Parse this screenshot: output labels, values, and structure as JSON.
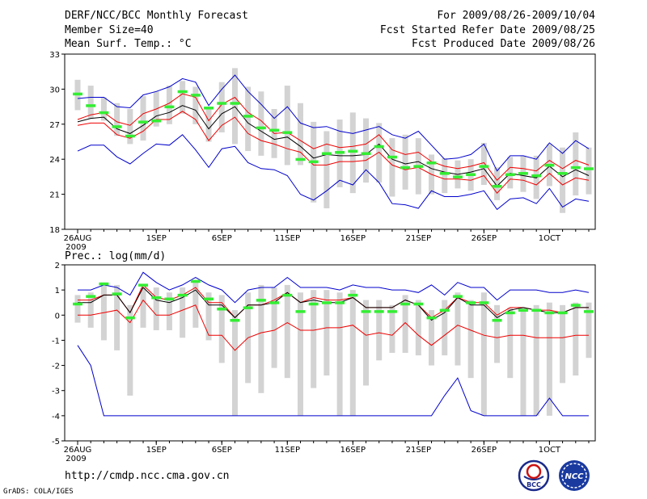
{
  "header": {
    "title": "DERF/NCC/BCC Monthly Forecast",
    "member_size": "Member Size=40",
    "variable": "Mean Surf. Temp.: °C",
    "period": "For 2009/08/26-2009/10/04",
    "fcst_started": "Fcst Started Refer Date 2009/08/25",
    "fcst_produced": "Fcst Produced Date 2009/08/26"
  },
  "precip_title": "Prec.: log(mm/d)",
  "footer": {
    "url": "http://cmdp.ncc.cma.gov.cn",
    "grads": "GrADS: COLA/IGES"
  },
  "logos": {
    "bcc": "BCC",
    "ncc": "NCC"
  },
  "colors": {
    "member_bar": "#d3d3d3",
    "observed": "#33ee33",
    "ensemble_mean": "#000000",
    "spread_band": "#ee0000",
    "extreme_band": "#0000cc"
  },
  "chart_data": [
    {
      "type": "line",
      "title": "Mean Surf. Temp.",
      "ylabel": "°C",
      "ylim": [
        18,
        33
      ],
      "yticks": [
        18,
        21,
        24,
        27,
        30,
        33
      ],
      "x": [
        "08/26",
        "08/27",
        "08/28",
        "08/29",
        "08/30",
        "08/31",
        "09/01",
        "09/02",
        "09/03",
        "09/04",
        "09/05",
        "09/06",
        "09/07",
        "09/08",
        "09/09",
        "09/10",
        "09/11",
        "09/12",
        "09/13",
        "09/14",
        "09/15",
        "09/16",
        "09/17",
        "09/18",
        "09/19",
        "09/20",
        "09/21",
        "09/22",
        "09/23",
        "09/24",
        "09/25",
        "09/26",
        "09/27",
        "09/28",
        "09/29",
        "09/30",
        "10/01",
        "10/02",
        "10/03",
        "10/04"
      ],
      "xtick_labels": [
        {
          "index": 0,
          "label": "26AUG",
          "sub": "2009"
        },
        {
          "index": 6,
          "label": "1SEP"
        },
        {
          "index": 11,
          "label": "6SEP"
        },
        {
          "index": 16,
          "label": "11SEP"
        },
        {
          "index": 21,
          "label": "16SEP"
        },
        {
          "index": 26,
          "label": "21SEP"
        },
        {
          "index": 31,
          "label": "26SEP"
        },
        {
          "index": 36,
          "label": "1OCT"
        }
      ],
      "series": [
        {
          "name": "ensemble max",
          "color": "#0000cc",
          "values": [
            29.2,
            29.3,
            29.3,
            28.5,
            28.4,
            29.5,
            29.8,
            30.2,
            30.9,
            30.6,
            28.6,
            30.0,
            31.2,
            29.8,
            28.7,
            27.5,
            28.5,
            27.1,
            26.7,
            26.8,
            26.4,
            26.2,
            26.5,
            26.8,
            26.1,
            25.8,
            26.4,
            25.2,
            24.0,
            24.1,
            24.4,
            25.3,
            23.0,
            24.3,
            24.3,
            24.0,
            25.4,
            24.5,
            25.6,
            24.9
          ]
        },
        {
          "name": "spread upper",
          "color": "#ee0000",
          "values": [
            27.4,
            27.8,
            28.0,
            27.2,
            26.9,
            27.9,
            28.3,
            28.8,
            29.6,
            29.3,
            27.3,
            28.7,
            29.3,
            28.0,
            27.3,
            26.2,
            26.3,
            25.6,
            24.9,
            25.3,
            25.0,
            25.1,
            25.3,
            26.1,
            24.8,
            24.4,
            24.6,
            23.8,
            23.4,
            23.2,
            23.4,
            23.7,
            22.2,
            23.3,
            23.2,
            23.0,
            23.9,
            23.2,
            23.9,
            23.5
          ]
        },
        {
          "name": "ensemble mean",
          "color": "#000000",
          "values": [
            27.2,
            27.5,
            27.6,
            26.6,
            26.2,
            26.9,
            27.7,
            28.0,
            28.6,
            28.2,
            26.6,
            27.9,
            28.5,
            27.1,
            26.4,
            25.7,
            25.9,
            25.1,
            24.1,
            24.4,
            24.3,
            24.3,
            24.4,
            25.3,
            24.0,
            23.6,
            23.8,
            23.2,
            22.9,
            22.7,
            22.9,
            23.2,
            21.7,
            22.8,
            22.6,
            22.4,
            23.4,
            22.5,
            23.1,
            22.6
          ]
        },
        {
          "name": "spread lower",
          "color": "#ee0000",
          "values": [
            26.9,
            27.1,
            27.1,
            26.1,
            25.8,
            26.4,
            27.4,
            27.4,
            28.1,
            27.4,
            25.6,
            26.9,
            27.6,
            26.2,
            25.6,
            25.3,
            24.9,
            24.6,
            23.5,
            23.5,
            23.8,
            23.8,
            23.9,
            24.6,
            23.5,
            23.1,
            23.3,
            22.7,
            22.3,
            22.3,
            22.2,
            22.6,
            21.1,
            22.3,
            22.2,
            21.8,
            22.8,
            21.8,
            22.4,
            22.2
          ]
        },
        {
          "name": "ensemble min",
          "color": "#0000cc",
          "values": [
            24.7,
            25.2,
            25.2,
            24.2,
            23.6,
            24.5,
            25.3,
            25.2,
            26.1,
            24.8,
            23.3,
            24.9,
            25.1,
            23.7,
            23.2,
            23.1,
            22.6,
            21.0,
            20.5,
            21.3,
            22.2,
            21.8,
            23.1,
            22.0,
            20.2,
            20.1,
            19.8,
            21.3,
            20.8,
            20.8,
            21.0,
            21.3,
            19.7,
            20.6,
            20.7,
            20.2,
            21.5,
            19.9,
            20.6,
            20.4
          ]
        }
      ],
      "member_range": [
        [
          28.2,
          30.8
        ],
        [
          27.5,
          30.3
        ],
        [
          27.3,
          29.3
        ],
        [
          26.0,
          28.8
        ],
        [
          25.3,
          28.3
        ],
        [
          25.6,
          29.4
        ],
        [
          26.8,
          29.8
        ],
        [
          27.0,
          30.3
        ],
        [
          27.9,
          30.7
        ],
        [
          27.0,
          30.2
        ],
        [
          25.5,
          28.4
        ],
        [
          26.3,
          30.6
        ],
        [
          25.3,
          31.8
        ],
        [
          24.7,
          30.2
        ],
        [
          24.3,
          29.8
        ],
        [
          24.1,
          28.3
        ],
        [
          23.5,
          30.3
        ],
        [
          23.5,
          28.8
        ],
        [
          20.3,
          27.2
        ],
        [
          19.8,
          26.4
        ],
        [
          21.6,
          27.4
        ],
        [
          21.1,
          28.0
        ],
        [
          22.0,
          27.5
        ],
        [
          22.0,
          27.1
        ],
        [
          20.8,
          25.8
        ],
        [
          21.4,
          26.1
        ],
        [
          21.0,
          25.8
        ],
        [
          21.0,
          24.4
        ],
        [
          21.1,
          24.1
        ],
        [
          21.5,
          23.9
        ],
        [
          21.3,
          24.0
        ],
        [
          21.8,
          25.4
        ],
        [
          20.5,
          23.3
        ],
        [
          21.5,
          24.2
        ],
        [
          21.2,
          24.3
        ],
        [
          20.6,
          24.3
        ],
        [
          21.7,
          25.3
        ],
        [
          19.4,
          25.0
        ],
        [
          20.9,
          26.3
        ],
        [
          21.0,
          25.0
        ]
      ],
      "observed": [
        29.6,
        28.6,
        28.0,
        26.8,
        26.0,
        27.2,
        27.3,
        28.5,
        29.8,
        29.5,
        28.4,
        28.8,
        28.8,
        27.7,
        26.7,
        26.5,
        26.3,
        24.0,
        23.8,
        24.5,
        24.6,
        24.7,
        24.5,
        25.1,
        24.2,
        23.3,
        23.4,
        23.7,
        22.8,
        22.5,
        22.7,
        23.4,
        21.7,
        22.7,
        22.8,
        22.6,
        23.5,
        22.8,
        23.3,
        23.2
      ]
    },
    {
      "type": "line",
      "title": "Prec.: log(mm/d)",
      "ylabel": "log(mm/d)",
      "ylim": [
        -5,
        2
      ],
      "yticks": [
        -5,
        -4,
        -3,
        -2,
        -1,
        0,
        1,
        2
      ],
      "x": [
        "08/26",
        "08/27",
        "08/28",
        "08/29",
        "08/30",
        "08/31",
        "09/01",
        "09/02",
        "09/03",
        "09/04",
        "09/05",
        "09/06",
        "09/07",
        "09/08",
        "09/09",
        "09/10",
        "09/11",
        "09/12",
        "09/13",
        "09/14",
        "09/15",
        "09/16",
        "09/17",
        "09/18",
        "09/19",
        "09/20",
        "09/21",
        "09/22",
        "09/23",
        "09/24",
        "09/25",
        "09/26",
        "09/27",
        "09/28",
        "09/29",
        "09/30",
        "10/01",
        "10/02",
        "10/03",
        "10/04"
      ],
      "xtick_labels": [
        {
          "index": 0,
          "label": "26AUG",
          "sub": "2009"
        },
        {
          "index": 6,
          "label": "1SEP"
        },
        {
          "index": 11,
          "label": "6SEP"
        },
        {
          "index": 16,
          "label": "11SEP"
        },
        {
          "index": 21,
          "label": "16SEP"
        },
        {
          "index": 26,
          "label": "21SEP"
        },
        {
          "index": 31,
          "label": "26SEP"
        },
        {
          "index": 36,
          "label": "1OCT"
        }
      ],
      "series": [
        {
          "name": "ensemble max",
          "color": "#0000cc",
          "values": [
            1.0,
            1.0,
            1.2,
            1.1,
            0.8,
            1.7,
            1.3,
            1.0,
            1.2,
            1.5,
            1.2,
            1.0,
            0.5,
            1.0,
            1.1,
            1.1,
            1.5,
            1.1,
            1.1,
            1.1,
            1.0,
            1.2,
            1.1,
            1.1,
            1.0,
            1.0,
            0.9,
            1.2,
            0.8,
            1.3,
            1.1,
            1.1,
            0.6,
            1.0,
            1.0,
            1.0,
            0.9,
            0.9,
            1.0,
            0.9
          ]
        },
        {
          "name": "spread upper",
          "color": "#ee0000",
          "values": [
            0.6,
            0.6,
            0.8,
            0.8,
            0.1,
            1.2,
            0.7,
            0.6,
            0.8,
            1.1,
            0.5,
            0.5,
            -0.1,
            0.4,
            0.4,
            0.6,
            0.9,
            0.5,
            0.7,
            0.6,
            0.6,
            0.7,
            0.3,
            0.3,
            0.3,
            0.6,
            0.4,
            -0.1,
            0.2,
            0.7,
            0.5,
            0.5,
            0.0,
            0.3,
            0.3,
            0.2,
            0.2,
            0.1,
            0.3,
            0.3
          ]
        },
        {
          "name": "ensemble mean",
          "color": "#000000",
          "values": [
            0.5,
            0.5,
            0.8,
            0.8,
            0.1,
            1.1,
            0.6,
            0.5,
            0.7,
            1.0,
            0.4,
            0.4,
            -0.1,
            0.4,
            0.4,
            0.5,
            0.9,
            0.5,
            0.6,
            0.5,
            0.5,
            0.7,
            0.3,
            0.3,
            0.3,
            0.6,
            0.4,
            -0.2,
            0.1,
            0.7,
            0.4,
            0.4,
            -0.1,
            0.2,
            0.3,
            0.2,
            0.1,
            0.1,
            0.3,
            0.3
          ]
        },
        {
          "name": "spread lower",
          "color": "#ee0000",
          "values": [
            0.0,
            0.0,
            0.1,
            0.2,
            -0.3,
            0.6,
            0.0,
            0.0,
            0.2,
            0.4,
            -0.8,
            -0.8,
            -1.4,
            -0.9,
            -0.7,
            -0.6,
            -0.3,
            -0.6,
            -0.6,
            -0.5,
            -0.5,
            -0.4,
            -0.8,
            -0.7,
            -0.8,
            -0.3,
            -0.8,
            -1.2,
            -0.8,
            -0.4,
            -0.6,
            -0.8,
            -0.9,
            -0.8,
            -0.8,
            -0.9,
            -0.9,
            -0.9,
            -0.8,
            -0.8
          ]
        },
        {
          "name": "ensemble min",
          "color": "#0000cc",
          "values": [
            -1.2,
            -2.0,
            -4.0,
            -4.0,
            -4.0,
            -4.0,
            -4.0,
            -4.0,
            -4.0,
            -4.0,
            -4.0,
            -4.0,
            -4.0,
            -4.0,
            -4.0,
            -4.0,
            -4.0,
            -4.0,
            -4.0,
            -4.0,
            -4.0,
            -4.0,
            -4.0,
            -4.0,
            -4.0,
            -4.0,
            -4.0,
            -4.0,
            -3.2,
            -2.5,
            -3.8,
            -4.0,
            -4.0,
            -4.0,
            -4.0,
            -4.0,
            -3.3,
            -4.0,
            -4.0,
            -4.0
          ]
        }
      ],
      "member_range": [
        [
          -0.3,
          0.8
        ],
        [
          -0.5,
          0.9
        ],
        [
          -1.0,
          1.3
        ],
        [
          -1.4,
          1.2
        ],
        [
          -3.2,
          0.4
        ],
        [
          -0.5,
          1.1
        ],
        [
          -0.6,
          1.1
        ],
        [
          -0.6,
          0.9
        ],
        [
          -0.9,
          1.1
        ],
        [
          -0.5,
          1.4
        ],
        [
          -1.0,
          0.9
        ],
        [
          -1.9,
          0.8
        ],
        [
          -4.0,
          0.2
        ],
        [
          -2.7,
          0.9
        ],
        [
          -3.1,
          1.2
        ],
        [
          -2.1,
          1.1
        ],
        [
          -2.5,
          1.2
        ],
        [
          -4.0,
          0.9
        ],
        [
          -2.9,
          1.0
        ],
        [
          -2.4,
          1.0
        ],
        [
          -4.0,
          0.9
        ],
        [
          -4.0,
          1.0
        ],
        [
          -2.8,
          0.6
        ],
        [
          -1.8,
          0.6
        ],
        [
          -1.5,
          0.4
        ],
        [
          -1.5,
          0.8
        ],
        [
          -1.6,
          0.6
        ],
        [
          -2.0,
          0.2
        ],
        [
          -1.6,
          0.6
        ],
        [
          -2.0,
          0.9
        ],
        [
          -2.5,
          0.6
        ],
        [
          -4.0,
          0.9
        ],
        [
          -1.9,
          0.4
        ],
        [
          -2.5,
          0.3
        ],
        [
          -4.0,
          0.3
        ],
        [
          -4.0,
          0.4
        ],
        [
          -4.0,
          0.5
        ],
        [
          -2.7,
          0.4
        ],
        [
          -2.4,
          0.5
        ],
        [
          -1.7,
          0.5
        ]
      ],
      "observed": [
        0.45,
        0.75,
        1.25,
        0.85,
        -0.1,
        1.2,
        0.7,
        0.65,
        0.8,
        1.35,
        0.65,
        0.25,
        -0.2,
        0.3,
        0.6,
        0.5,
        0.8,
        0.15,
        0.45,
        0.5,
        0.5,
        0.8,
        0.15,
        0.15,
        0.15,
        0.45,
        0.45,
        -0.1,
        0.2,
        0.75,
        0.5,
        0.5,
        -0.2,
        0.1,
        0.2,
        0.2,
        0.1,
        0.1,
        0.4,
        0.15
      ]
    }
  ]
}
